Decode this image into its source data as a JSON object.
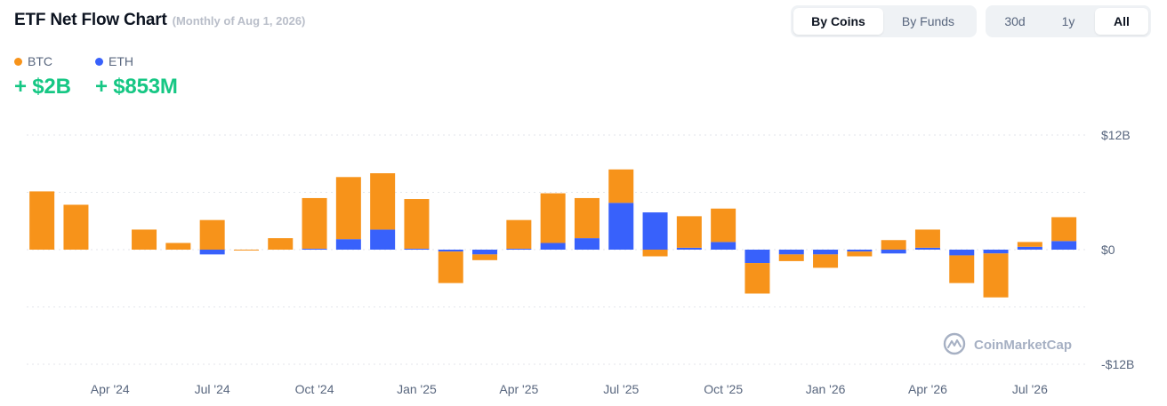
{
  "header": {
    "title": "ETF Net Flow Chart",
    "subtitle": "(Monthly of Aug 1, 2026)"
  },
  "view_toggle": {
    "by_coins": "By Coins",
    "by_funds": "By Funds",
    "active": "By Coins"
  },
  "range_toggle": {
    "d30": "30d",
    "y1": "1y",
    "all": "All",
    "active": "All"
  },
  "legend": {
    "btc": {
      "label": "BTC",
      "value": "+ $2B",
      "color": "#f7931a"
    },
    "eth": {
      "label": "ETH",
      "value": "+ $853M",
      "color": "#3861fb"
    }
  },
  "watermark": "CoinMarketCap",
  "colors": {
    "btc": "#f7931a",
    "eth": "#3861fb",
    "positive": "#16c784",
    "grid": "#e3e6eb"
  },
  "chart_data": {
    "type": "bar",
    "stacked": true,
    "x": [
      "Feb '24",
      "Mar '24",
      "Apr '24",
      "May '24",
      "Jun '24",
      "Jul '24",
      "Aug '24",
      "Sep '24",
      "Oct '24",
      "Nov '24",
      "Dec '24",
      "Jan '25",
      "Feb '25",
      "Mar '25",
      "Apr '25",
      "May '25",
      "Jun '25",
      "Jul '25",
      "Aug '25",
      "Sep '25",
      "Oct '25",
      "Nov '25",
      "Dec '25",
      "Jan '26",
      "Feb '26",
      "Mar '26",
      "Apr '26",
      "May '26",
      "Jun '26",
      "Jul '26",
      "Aug '26"
    ],
    "x_tick_labels": [
      "Apr '24",
      "Jul '24",
      "Oct '24",
      "Jan '25",
      "Apr '25",
      "Jul '25",
      "Oct '25",
      "Jan '26",
      "Apr '26",
      "Jul '26"
    ],
    "y_tick_labels": [
      "$12B",
      "$0",
      "-$12B"
    ],
    "ylim": [
      -12,
      12
    ],
    "unit": "billions USD",
    "grid": true,
    "series": [
      {
        "name": "BTC",
        "color": "#f7931a",
        "values": [
          6.1,
          4.7,
          null,
          2.1,
          0.7,
          3.1,
          0.0,
          1.2,
          5.3,
          6.5,
          5.9,
          5.2,
          -3.3,
          -0.6,
          3.0,
          5.2,
          4.2,
          3.5,
          -0.7,
          3.3,
          3.5,
          -3.2,
          -0.7,
          -1.4,
          -0.5,
          1.0,
          1.9,
          -2.9,
          -4.6,
          0.5,
          2.5
        ]
      },
      {
        "name": "ETH",
        "color": "#3861fb",
        "values": [
          null,
          null,
          null,
          null,
          null,
          -0.5,
          0.0,
          null,
          0.1,
          1.1,
          2.1,
          0.1,
          -0.2,
          -0.5,
          0.1,
          0.7,
          1.2,
          4.9,
          3.9,
          0.2,
          0.8,
          -1.4,
          -0.5,
          -0.5,
          -0.2,
          -0.4,
          0.2,
          -0.6,
          -0.4,
          0.3,
          0.9
        ]
      }
    ]
  }
}
